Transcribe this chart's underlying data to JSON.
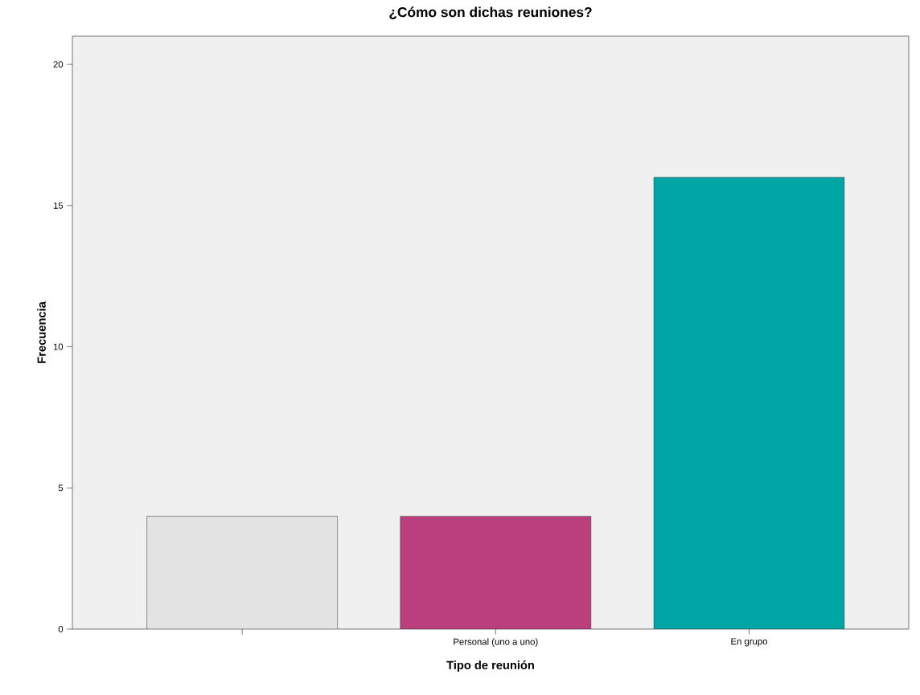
{
  "chart_data": {
    "type": "bar",
    "title": "¿Cómo son dichas reuniones?",
    "xlabel": "Tipo de reunión",
    "ylabel": "Frecuencia",
    "categories": [
      null,
      "Personal (uno a uno)",
      "En grupo"
    ],
    "values": [
      4,
      4,
      16
    ],
    "colors": [
      "#e3e3e3",
      "#bb3f7d",
      "#00a6a6"
    ],
    "ylim": [
      0,
      21
    ],
    "yticks": [
      0,
      5,
      10,
      15,
      20
    ],
    "grid": false
  }
}
